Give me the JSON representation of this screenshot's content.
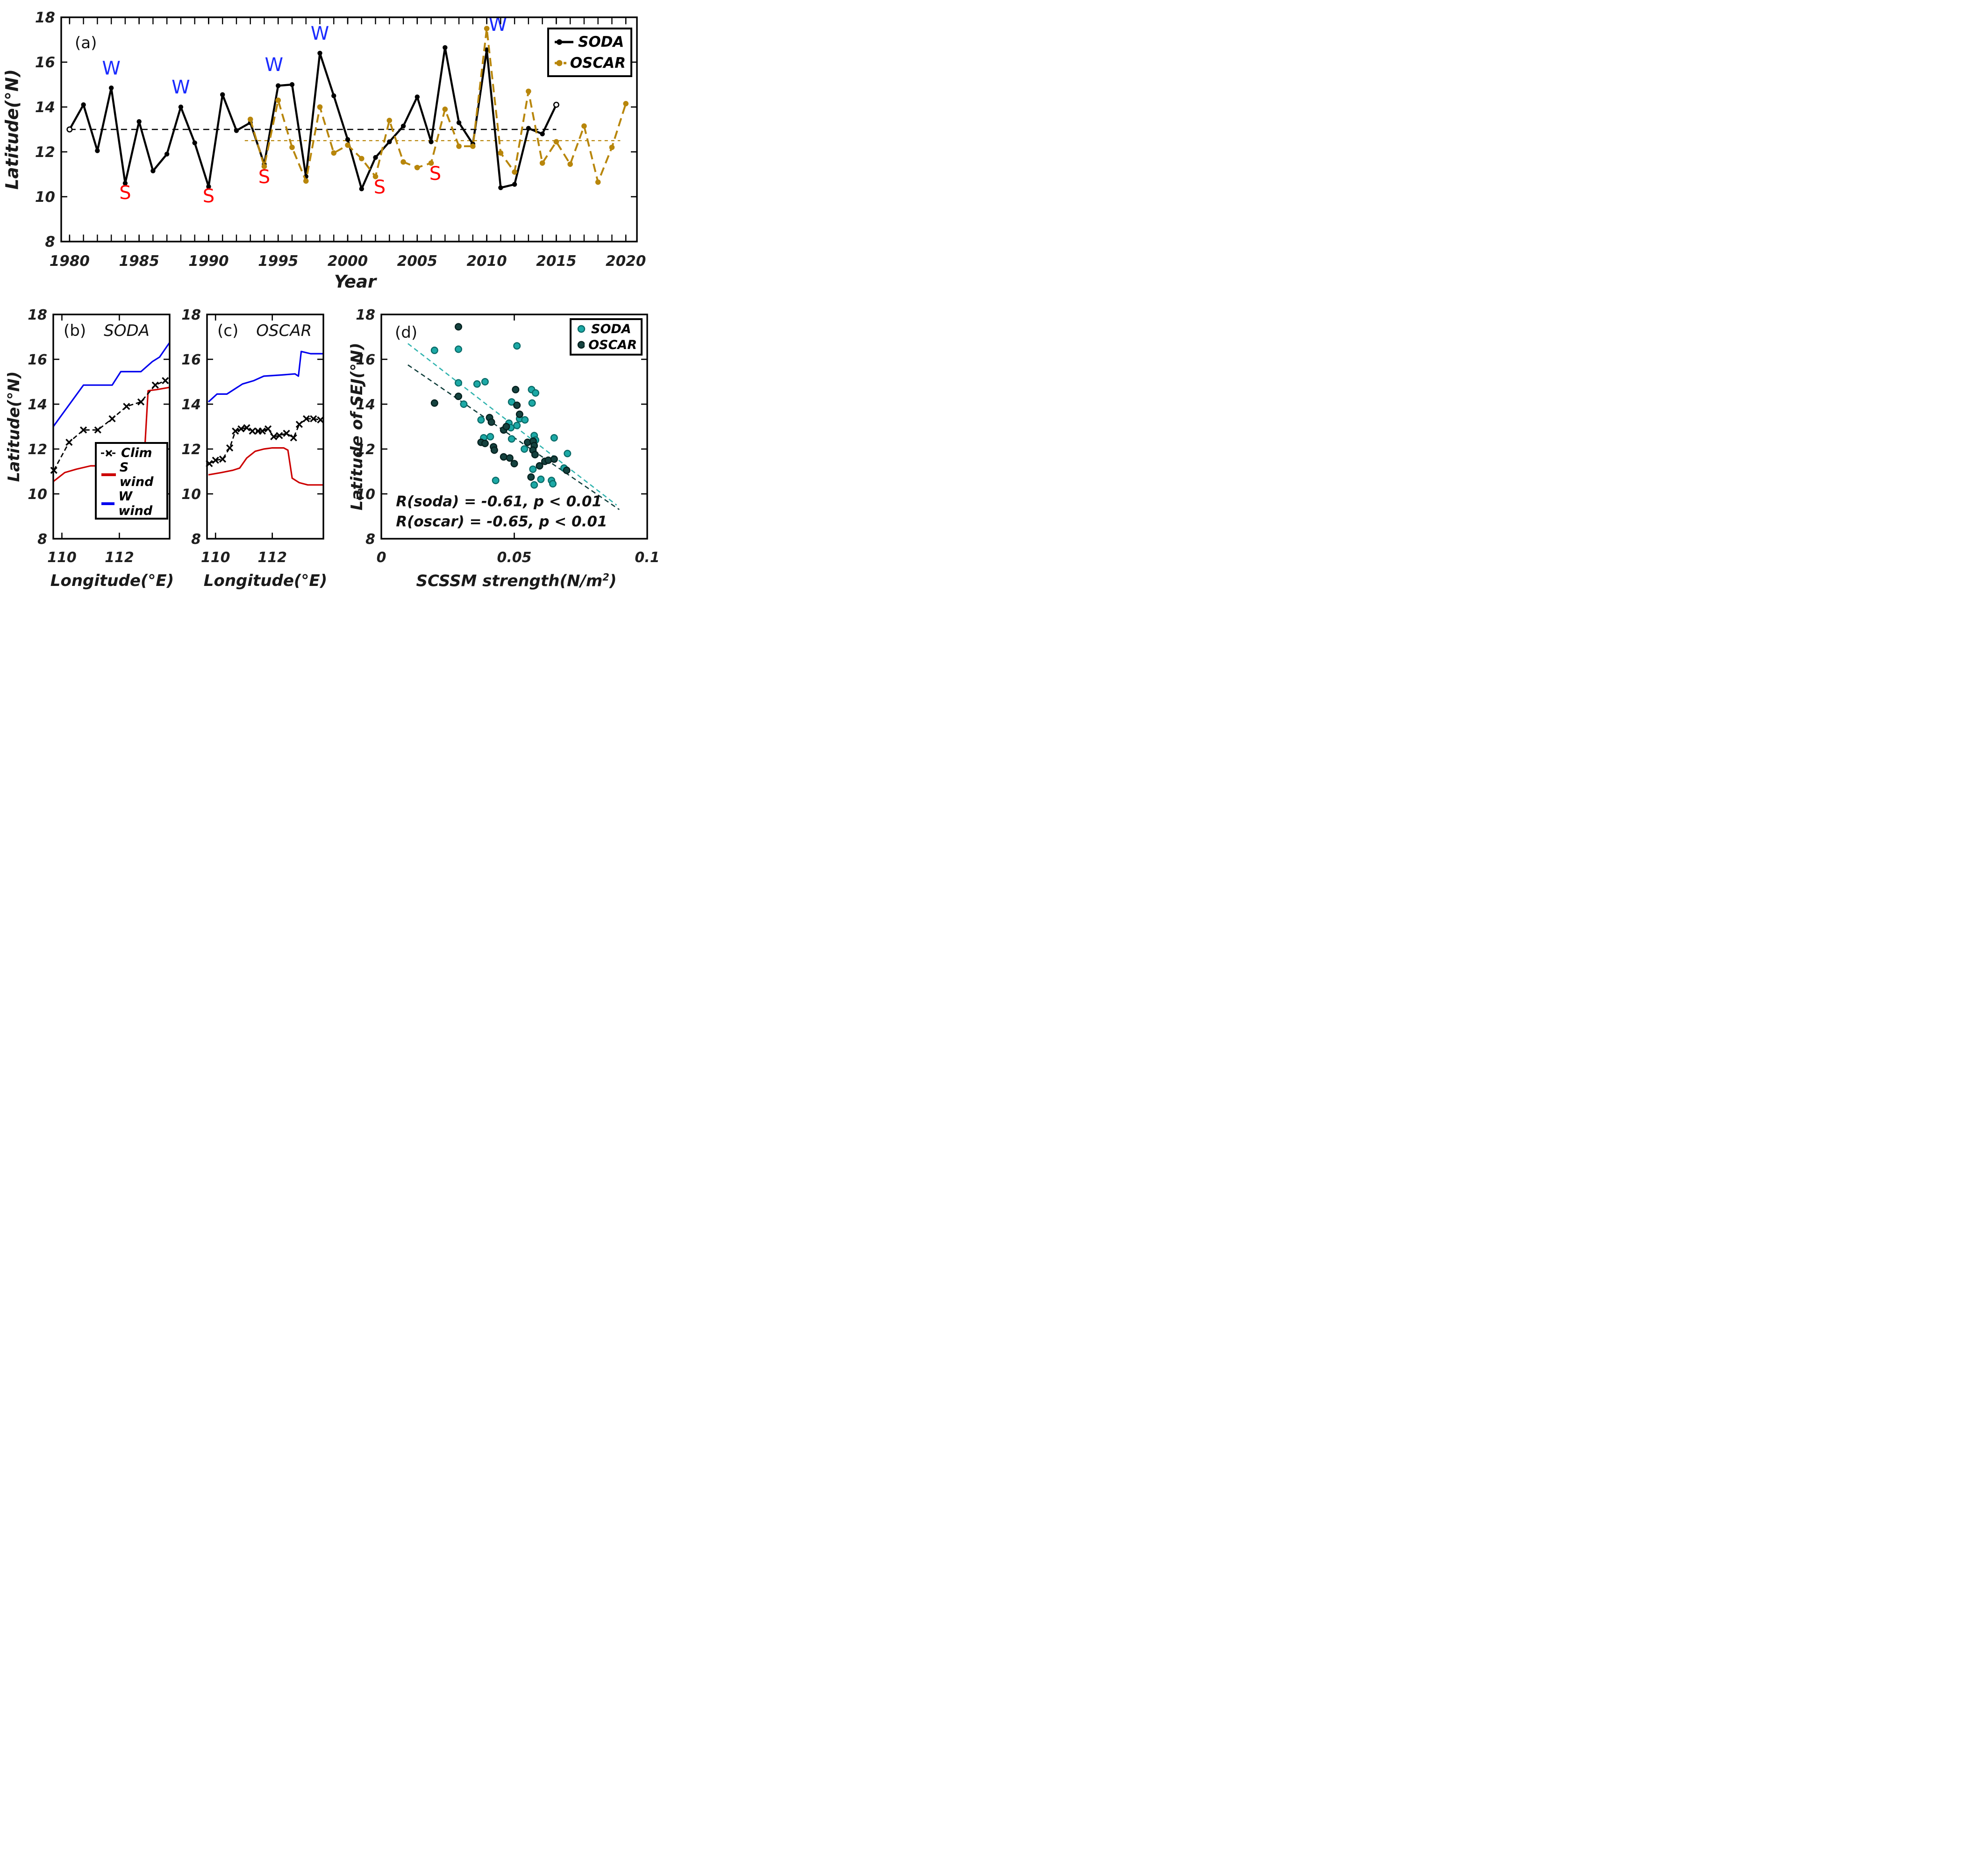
{
  "colors": {
    "black": "#000000",
    "gold": "#B8860B",
    "blue_line": "#0000EE",
    "red_line": "#CC0000",
    "w_label_blue": "#1A2BFF",
    "s_label_red": "#FF0000",
    "soda_teal_face": "#1CA9A6",
    "soda_teal_edge": "#0A6B68",
    "oscar_dark_face": "#15423F",
    "oscar_dark_edge": "#05201E",
    "trend_soda": "#2FB3AE",
    "trend_oscar": "#0F3D3A",
    "tick_text": "#1f1f1f"
  },
  "chart_data": [
    {
      "id": "a",
      "type": "line",
      "title": "(a)",
      "xlabel": "Year",
      "ylabel": "Latitude(°N)",
      "xlim": [
        1979.4,
        2020.8
      ],
      "ylim": [
        8,
        18
      ],
      "xticks": [
        1980,
        1985,
        1990,
        1995,
        2000,
        2005,
        2010,
        2015,
        2020
      ],
      "yticks": [
        8,
        10,
        12,
        14,
        16,
        18
      ],
      "minor_x_step": 1,
      "legend": {
        "position": "top-right",
        "entries": [
          {
            "label": "SODA",
            "color_key": "black",
            "line": "solid",
            "marker": "dot"
          },
          {
            "label": "OSCAR",
            "color_key": "gold",
            "line": "dashed",
            "marker": "dot"
          }
        ]
      },
      "series": [
        {
          "name": "SODA",
          "color_key": "black",
          "line": "solid",
          "marker": "dot",
          "open_endpoints": true,
          "x": [
            1980,
            1981,
            1982,
            1983,
            1984,
            1985,
            1986,
            1987,
            1988,
            1989,
            1990,
            1991,
            1992,
            1993,
            1994,
            1995,
            1996,
            1997,
            1998,
            1999,
            2000,
            2001,
            2002,
            2003,
            2004,
            2005,
            2006,
            2007,
            2008,
            2009,
            2010,
            2011,
            2012,
            2013,
            2014,
            2015
          ],
          "y": [
            13.0,
            14.1,
            12.05,
            14.85,
            10.6,
            13.35,
            11.15,
            11.9,
            14.0,
            12.4,
            10.45,
            14.55,
            12.95,
            13.3,
            11.45,
            14.95,
            15.0,
            10.9,
            16.4,
            14.5,
            12.55,
            10.35,
            11.75,
            12.45,
            13.15,
            14.45,
            12.45,
            16.65,
            13.3,
            12.35,
            16.55,
            10.4,
            10.55,
            13.05,
            12.8,
            14.1
          ]
        },
        {
          "name": "OSCAR",
          "color_key": "gold",
          "line": "dashed",
          "marker": "dot",
          "open_endpoints": false,
          "x": [
            1993,
            1994,
            1995,
            1996,
            1997,
            1998,
            1999,
            2000,
            2001,
            2002,
            2003,
            2004,
            2005,
            2006,
            2007,
            2008,
            2009,
            2010,
            2011,
            2012,
            2013,
            2014,
            2015,
            2016,
            2017,
            2018,
            2019,
            2020
          ],
          "y": [
            13.45,
            11.35,
            14.3,
            12.2,
            10.7,
            14.0,
            11.95,
            12.3,
            11.7,
            10.9,
            13.4,
            11.55,
            11.3,
            11.5,
            13.9,
            12.25,
            12.25,
            17.5,
            11.95,
            11.1,
            14.7,
            11.5,
            12.45,
            11.45,
            13.15,
            10.65,
            12.2,
            14.15
          ]
        }
      ],
      "mean_lines": [
        {
          "value": 13.0,
          "x_start": 1980,
          "x_end": 2015,
          "color_key": "black",
          "dash": "13,9",
          "width": 2.6
        },
        {
          "value": 12.5,
          "x_start": 1992.6,
          "x_end": 2019.6,
          "color_key": "gold",
          "dash": "7,7",
          "width": 2.2
        }
      ],
      "annotations": [
        {
          "text": "W",
          "x": 1983,
          "y": 15.45,
          "color_key": "w_label_blue"
        },
        {
          "text": "W",
          "x": 1988,
          "y": 14.6,
          "color_key": "w_label_blue"
        },
        {
          "text": "W",
          "x": 1994.7,
          "y": 15.6,
          "color_key": "w_label_blue"
        },
        {
          "text": "W",
          "x": 1998,
          "y": 17.0,
          "color_key": "w_label_blue"
        },
        {
          "text": "W",
          "x": 2010.8,
          "y": 17.4,
          "color_key": "w_label_blue"
        },
        {
          "text": "S",
          "x": 1984,
          "y": 9.9,
          "color_key": "s_label_red"
        },
        {
          "text": "S",
          "x": 1990,
          "y": 9.75,
          "color_key": "s_label_red"
        },
        {
          "text": "S",
          "x": 1994,
          "y": 10.6,
          "color_key": "s_label_red"
        },
        {
          "text": "S",
          "x": 2002.3,
          "y": 10.15,
          "color_key": "s_label_red"
        },
        {
          "text": "S",
          "x": 2006.3,
          "y": 10.75,
          "color_key": "s_label_red"
        }
      ]
    },
    {
      "id": "b",
      "type": "line",
      "title": "(b)",
      "subtitle": "SODA",
      "xlabel": "Longitude(°E)",
      "ylabel": "Latitude(°N)",
      "xlim": [
        109.7,
        113.75
      ],
      "ylim": [
        8,
        18
      ],
      "xticks": [
        110,
        112
      ],
      "yticks": [
        8,
        10,
        12,
        14,
        16,
        18
      ],
      "legend": {
        "position": "bottom-right",
        "entries": [
          {
            "label": "Clim",
            "color_key": "black",
            "line": "dashed",
            "marker": "x"
          },
          {
            "label": "S wind",
            "color_key": "red_line",
            "line": "solid",
            "marker": "none"
          },
          {
            "label": "W wind",
            "color_key": "blue_line",
            "line": "solid",
            "marker": "none"
          }
        ]
      },
      "series": [
        {
          "name": "W wind",
          "color_key": "blue_line",
          "line": "solid",
          "marker": "none",
          "x": [
            109.7,
            110.75,
            111.75,
            112.05,
            112.75,
            113.15,
            113.4,
            113.75
          ],
          "y": [
            13.0,
            14.85,
            14.85,
            15.45,
            15.45,
            15.9,
            16.1,
            16.75
          ]
        },
        {
          "name": "S wind",
          "color_key": "red_line",
          "line": "solid",
          "marker": "none",
          "x": [
            109.7,
            110.1,
            110.5,
            111.0,
            111.6,
            112.2,
            112.5,
            112.85,
            113.0,
            113.3,
            113.75
          ],
          "y": [
            10.55,
            10.95,
            11.1,
            11.25,
            11.25,
            11.3,
            11.35,
            11.25,
            14.6,
            14.65,
            14.75
          ]
        },
        {
          "name": "Clim",
          "color_key": "black",
          "line": "dashed",
          "marker": "x",
          "x": [
            109.72,
            110.25,
            110.75,
            111.25,
            111.75,
            112.25,
            112.75,
            113.25,
            113.6
          ],
          "y": [
            11.05,
            12.3,
            12.85,
            12.85,
            13.35,
            13.9,
            14.1,
            14.85,
            15.05
          ]
        }
      ]
    },
    {
      "id": "c",
      "type": "line",
      "title": "(c)",
      "subtitle": "OSCAR",
      "xlabel": "Longitude(°E)",
      "ylabel": "",
      "xlim": [
        109.7,
        113.8
      ],
      "ylim": [
        8,
        18
      ],
      "xticks": [
        110,
        112
      ],
      "yticks": [
        8,
        10,
        12,
        14,
        16,
        18
      ],
      "series": [
        {
          "name": "W wind",
          "color_key": "blue_line",
          "line": "solid",
          "marker": "none",
          "x": [
            109.75,
            110.05,
            110.4,
            110.95,
            111.35,
            111.7,
            112.3,
            112.8,
            112.92,
            113.02,
            113.35,
            113.8
          ],
          "y": [
            14.1,
            14.45,
            14.45,
            14.9,
            15.05,
            15.25,
            15.3,
            15.35,
            15.25,
            16.35,
            16.25,
            16.25
          ]
        },
        {
          "name": "S wind",
          "color_key": "red_line",
          "line": "solid",
          "marker": "none",
          "x": [
            109.75,
            110.2,
            110.6,
            110.85,
            111.1,
            111.4,
            111.7,
            112.0,
            112.4,
            112.55,
            112.7,
            112.95,
            113.25,
            113.8
          ],
          "y": [
            10.85,
            10.95,
            11.05,
            11.15,
            11.6,
            11.9,
            12.0,
            12.05,
            12.05,
            11.95,
            10.7,
            10.5,
            10.4,
            10.4
          ]
        },
        {
          "name": "Clim",
          "color_key": "black",
          "line": "dashed",
          "marker": "x",
          "x": [
            109.78,
            110.0,
            110.25,
            110.5,
            110.7,
            110.9,
            111.1,
            111.3,
            111.5,
            111.65,
            111.85,
            112.05,
            112.25,
            112.5,
            112.75,
            112.95,
            113.2,
            113.45,
            113.7
          ],
          "y": [
            11.35,
            11.5,
            11.55,
            12.05,
            12.8,
            12.9,
            12.95,
            12.8,
            12.8,
            12.8,
            12.9,
            12.55,
            12.6,
            12.7,
            12.5,
            13.1,
            13.35,
            13.35,
            13.3
          ]
        }
      ]
    },
    {
      "id": "d",
      "type": "scatter",
      "title": "(d)",
      "xlabel_main": "SCSSM strength(N/m",
      "xlabel_sup": "2",
      "xlabel_close": ")",
      "ylabel": "Latitude of SEJ(°N)",
      "xlim": [
        0,
        0.1
      ],
      "ylim": [
        8,
        18
      ],
      "xticks": [
        0,
        0.05,
        0.1
      ],
      "xtick_labels": [
        "0",
        "0.05",
        "0.1"
      ],
      "yticks": [
        8,
        10,
        12,
        14,
        16,
        18
      ],
      "legend": {
        "position": "top-right",
        "entries": [
          {
            "label": "SODA",
            "color_key": "soda_teal_face",
            "edge_key": "soda_teal_edge",
            "marker": "dot"
          },
          {
            "label": "OSCAR",
            "color_key": "oscar_dark_face",
            "edge_key": "oscar_dark_edge",
            "marker": "dot"
          }
        ]
      },
      "scatter": [
        {
          "name": "SODA",
          "face_key": "soda_teal_face",
          "edge_key": "soda_teal_edge",
          "points": [
            [
              0.02,
              16.4
            ],
            [
              0.029,
              16.45
            ],
            [
              0.051,
              16.6
            ],
            [
              0.029,
              14.95
            ],
            [
              0.036,
              14.9
            ],
            [
              0.039,
              15.0
            ],
            [
              0.031,
              14.0
            ],
            [
              0.049,
              14.1
            ],
            [
              0.0565,
              14.65
            ],
            [
              0.058,
              14.5
            ],
            [
              0.0567,
              14.05
            ],
            [
              0.0375,
              13.3
            ],
            [
              0.052,
              13.35
            ],
            [
              0.054,
              13.3
            ],
            [
              0.048,
              13.15
            ],
            [
              0.0487,
              12.95
            ],
            [
              0.051,
              13.05
            ],
            [
              0.041,
              12.55
            ],
            [
              0.0385,
              12.5
            ],
            [
              0.049,
              12.45
            ],
            [
              0.0575,
              12.6
            ],
            [
              0.058,
              12.4
            ],
            [
              0.065,
              12.5
            ],
            [
              0.0538,
              12.0
            ],
            [
              0.07,
              11.8
            ],
            [
              0.057,
              11.1
            ],
            [
              0.06,
              10.65
            ],
            [
              0.043,
              10.6
            ],
            [
              0.0575,
              10.4
            ],
            [
              0.064,
              10.6
            ],
            [
              0.0645,
              10.45
            ],
            [
              0.0687,
              11.15
            ]
          ]
        },
        {
          "name": "OSCAR",
          "face_key": "oscar_dark_face",
          "edge_key": "oscar_dark_edge",
          "points": [
            [
              0.029,
              17.45
            ],
            [
              0.02,
              14.05
            ],
            [
              0.029,
              14.35
            ],
            [
              0.0505,
              14.65
            ],
            [
              0.051,
              13.95
            ],
            [
              0.052,
              13.55
            ],
            [
              0.0407,
              13.4
            ],
            [
              0.0414,
              13.2
            ],
            [
              0.046,
              12.85
            ],
            [
              0.047,
              13.0
            ],
            [
              0.0375,
              12.3
            ],
            [
              0.039,
              12.25
            ],
            [
              0.0422,
              12.1
            ],
            [
              0.0425,
              11.95
            ],
            [
              0.055,
              12.3
            ],
            [
              0.0571,
              12.35
            ],
            [
              0.0575,
              12.15
            ],
            [
              0.057,
              11.95
            ],
            [
              0.0578,
              11.75
            ],
            [
              0.046,
              11.65
            ],
            [
              0.0483,
              11.6
            ],
            [
              0.05,
              11.35
            ],
            [
              0.0615,
              11.45
            ],
            [
              0.0628,
              11.5
            ],
            [
              0.0595,
              11.25
            ],
            [
              0.065,
              11.55
            ],
            [
              0.0563,
              10.75
            ],
            [
              0.0697,
              11.05
            ]
          ]
        }
      ],
      "trend_lines": [
        {
          "name": "SODA fit",
          "color_key": "trend_soda",
          "x1": 0.01,
          "y1": 16.7,
          "x2": 0.0885,
          "y2": 9.5
        },
        {
          "name": "OSCAR fit",
          "color_key": "trend_oscar",
          "x1": 0.01,
          "y1": 15.75,
          "x2": 0.0895,
          "y2": 9.3
        }
      ],
      "annotations": [
        {
          "text": "R(soda) = -0.61, p < 0.01",
          "x": 0.0055,
          "y": 9.45,
          "color_key": "black",
          "style": "stat"
        },
        {
          "text": "R(oscar) = -0.65, p < 0.01",
          "x": 0.0055,
          "y": 8.55,
          "color_key": "black",
          "style": "stat"
        }
      ]
    }
  ]
}
